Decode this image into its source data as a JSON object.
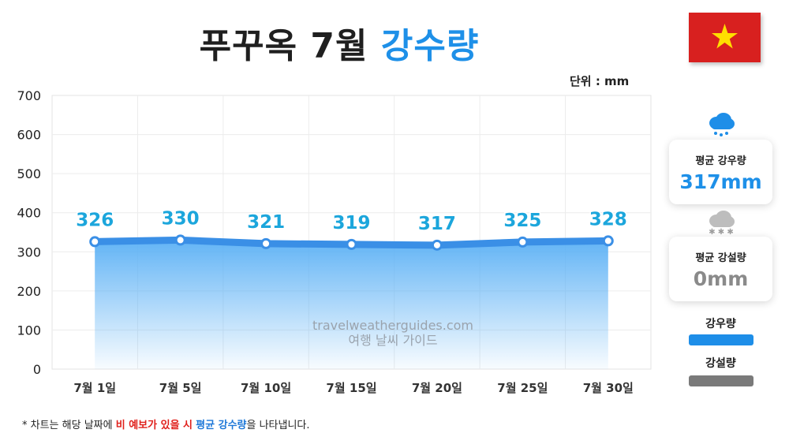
{
  "header": {
    "title_main": "푸꾸옥 7월",
    "title_accent": "강수량",
    "unit": "단위 : mm"
  },
  "chart_data": {
    "type": "area",
    "categories": [
      "7월 1일",
      "7월 5일",
      "7월 10일",
      "7월 15일",
      "7월 20일",
      "7월 25일",
      "7월 30일"
    ],
    "values": [
      326,
      330,
      321,
      319,
      317,
      325,
      328
    ],
    "value_labels": [
      "326",
      "330",
      "321",
      "319",
      "317",
      "325",
      "328"
    ],
    "ylim": [
      0,
      700
    ],
    "yticks": [
      "0",
      "100",
      "200",
      "300",
      "400",
      "500",
      "600",
      "700"
    ],
    "grid": true,
    "series_color": "#3a8fe6",
    "label_color": "#1ca6dc"
  },
  "watermark": {
    "line1": "travelweatherguides.com",
    "line2": "여행 날씨 가이드"
  },
  "sidebar": {
    "rain_icon": "rain-cloud-icon",
    "rain_label": "평균 강우량",
    "rain_value": "317mm",
    "snow_icon": "snow-cloud-icon",
    "snow_label": "평균 강설량",
    "snow_value": "0mm",
    "legend_rain": "강우량",
    "legend_snow": "강설량",
    "rain_color": "#1e8ee8",
    "snow_color": "#7a7a7a"
  },
  "footnote": {
    "prefix": "* 차트는 해당 날짜에 ",
    "red": "비 예보가 있을 시",
    "mid": " ",
    "blue": "평균 강수량",
    "suffix": "을 나타냅니다."
  }
}
